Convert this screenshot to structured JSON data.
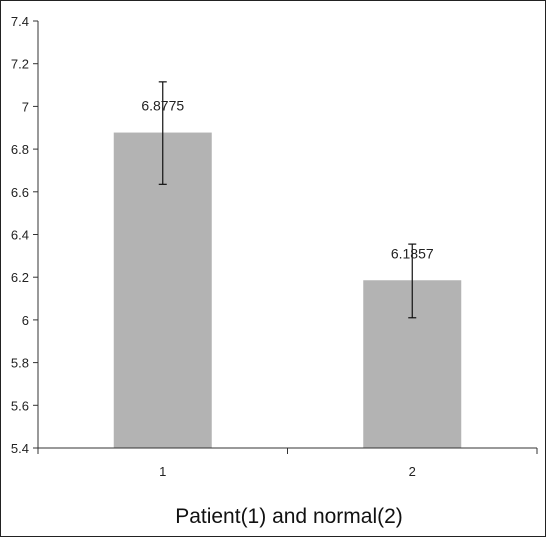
{
  "chart_data": {
    "type": "bar",
    "title": "",
    "xlabel": "Patient(1) and normal(2)",
    "ylabel": "",
    "categories": [
      "1",
      "2"
    ],
    "values": [
      6.8775,
      6.1857
    ],
    "data_labels": [
      "6.8775",
      "6.1857"
    ],
    "error_low": [
      6.635,
      6.01
    ],
    "error_high": [
      7.115,
      6.355
    ],
    "ylim": [
      5.4,
      7.4
    ],
    "yticks": [
      5.4,
      5.6,
      5.8,
      6.0,
      6.2,
      6.4,
      6.6,
      6.8,
      7.0,
      7.2,
      7.4
    ],
    "ytick_labels": [
      "5.4",
      "5.6",
      "5.8",
      "6",
      "6.2",
      "6.4",
      "6.6",
      "6.8",
      "7",
      "7.2",
      "7.4"
    ],
    "grid": false,
    "legend": "none",
    "colors": {
      "bar": "#b3b3b3",
      "axis": "#333333",
      "error": "#111111"
    }
  }
}
